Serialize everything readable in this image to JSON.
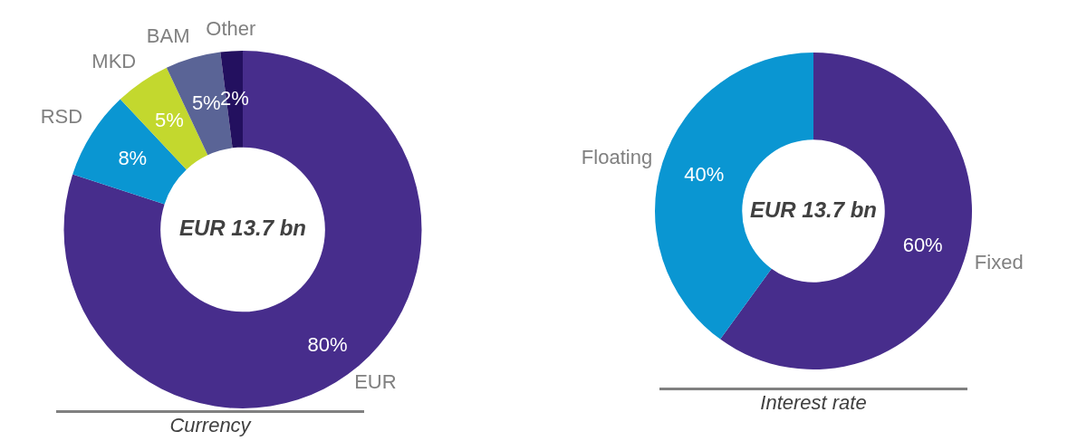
{
  "chart_data": [
    {
      "type": "donut",
      "xlabel": "Currency",
      "annotations": [
        "EUR 13.7 bn"
      ],
      "categories": [
        "EUR",
        "RSD",
        "MKD",
        "BAM",
        "Other"
      ],
      "values": [
        80,
        8,
        5,
        5,
        2
      ],
      "value_labels": [
        "80%",
        "8%",
        "5%",
        "5%",
        "2%"
      ],
      "colors": [
        "#472d8c",
        "#0a96d2",
        "#c3d82e",
        "#5a6496",
        "#23105f"
      ]
    },
    {
      "type": "donut",
      "xlabel": "Interest rate",
      "annotations": [
        "EUR 13.7 bn"
      ],
      "categories": [
        "Fixed",
        "Floating"
      ],
      "values": [
        60,
        40
      ],
      "value_labels": [
        "60%",
        "40%"
      ],
      "colors": [
        "#472d8c",
        "#0a96d2"
      ]
    }
  ]
}
